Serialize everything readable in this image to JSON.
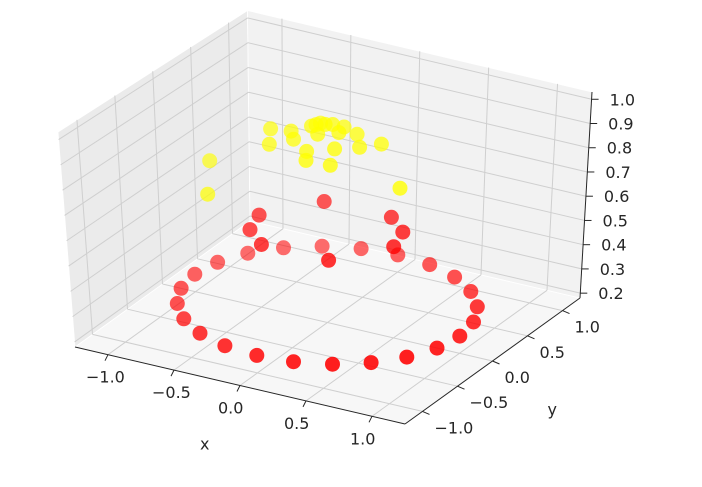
{
  "chart_data": {
    "type": "scatter",
    "projection": "3d",
    "title": "",
    "xlabel": "x",
    "ylabel": "y",
    "zlabel": "",
    "xlim": [
      -1.25,
      1.25
    ],
    "ylim": [
      -1.25,
      1.25
    ],
    "zlim": [
      0.18,
      1.03
    ],
    "xticks": [
      -1.0,
      -0.5,
      0.0,
      0.5,
      1.0
    ],
    "yticks": [
      -1.0,
      -0.5,
      0.0,
      0.5,
      1.0
    ],
    "zticks": [
      0.2,
      0.3,
      0.4,
      0.5,
      0.6,
      0.7,
      0.8,
      0.9,
      1.0
    ],
    "xtick_labels": [
      "−1.0",
      "−0.5",
      "0.0",
      "0.5",
      "1.0"
    ],
    "ytick_labels": [
      "−1.0",
      "−0.5",
      "0.0",
      "0.5",
      "1.0"
    ],
    "ztick_labels": [
      "0.2",
      "0.3",
      "0.4",
      "0.5",
      "0.6",
      "0.7",
      "0.8",
      "0.9",
      "1.0"
    ],
    "grid": true,
    "series": [
      {
        "color": "#ff0000",
        "points": [
          {
            "x": 1.0,
            "y": 0.0,
            "z": 0.25
          },
          {
            "x": 0.966,
            "y": 0.259,
            "z": 0.25
          },
          {
            "x": 0.866,
            "y": 0.5,
            "z": 0.25
          },
          {
            "x": 0.707,
            "y": 0.707,
            "z": 0.25
          },
          {
            "x": 0.5,
            "y": 0.866,
            "z": 0.25
          },
          {
            "x": 0.259,
            "y": 0.966,
            "z": 0.25
          },
          {
            "x": 0.0,
            "y": 1.0,
            "z": 0.25
          },
          {
            "x": -0.259,
            "y": 0.966,
            "z": 0.25
          },
          {
            "x": -0.5,
            "y": 0.866,
            "z": 0.25
          },
          {
            "x": -0.707,
            "y": 0.707,
            "z": 0.25
          },
          {
            "x": -0.866,
            "y": 0.5,
            "z": 0.25
          },
          {
            "x": -0.966,
            "y": 0.259,
            "z": 0.25
          },
          {
            "x": -1.0,
            "y": 0.0,
            "z": 0.25
          },
          {
            "x": -0.966,
            "y": -0.259,
            "z": 0.25
          },
          {
            "x": -0.866,
            "y": -0.5,
            "z": 0.25
          },
          {
            "x": -0.707,
            "y": -0.707,
            "z": 0.25
          },
          {
            "x": -0.5,
            "y": -0.866,
            "z": 0.25
          },
          {
            "x": -0.259,
            "y": -0.966,
            "z": 0.25
          },
          {
            "x": 0.0,
            "y": -1.0,
            "z": 0.25
          },
          {
            "x": 0.259,
            "y": -0.966,
            "z": 0.25
          },
          {
            "x": 0.5,
            "y": -0.866,
            "z": 0.25
          },
          {
            "x": 0.707,
            "y": -0.707,
            "z": 0.25
          },
          {
            "x": 0.866,
            "y": -0.5,
            "z": 0.25
          },
          {
            "x": 0.966,
            "y": -0.259,
            "z": 0.25
          },
          {
            "x": 0.5,
            "y": 0.0,
            "z": 0.55
          },
          {
            "x": 0.25,
            "y": 0.433,
            "z": 0.55
          },
          {
            "x": -0.25,
            "y": 0.433,
            "z": 0.55
          },
          {
            "x": -0.5,
            "y": 0.0,
            "z": 0.55
          },
          {
            "x": -0.25,
            "y": -0.433,
            "z": 0.55
          },
          {
            "x": 0.25,
            "y": -0.433,
            "z": 0.55
          },
          {
            "x": 0.433,
            "y": 0.25,
            "z": 0.55
          },
          {
            "x": -0.433,
            "y": -0.25,
            "z": 0.55
          }
        ]
      },
      {
        "color": "#ffff00",
        "points": [
          {
            "x": 0.0,
            "y": 0.0,
            "z": 0.98
          },
          {
            "x": 0.1,
            "y": 0.0,
            "z": 0.96
          },
          {
            "x": -0.1,
            "y": 0.0,
            "z": 0.96
          },
          {
            "x": 0.0,
            "y": 0.1,
            "z": 0.96
          },
          {
            "x": 0.0,
            "y": -0.1,
            "z": 0.96
          },
          {
            "x": 0.15,
            "y": 0.15,
            "z": 0.93
          },
          {
            "x": -0.15,
            "y": 0.15,
            "z": 0.93
          },
          {
            "x": 0.15,
            "y": -0.15,
            "z": 0.93
          },
          {
            "x": -0.15,
            "y": -0.15,
            "z": 0.93
          },
          {
            "x": 0.25,
            "y": 0.0,
            "z": 0.92
          },
          {
            "x": -0.25,
            "y": 0.0,
            "z": 0.92
          },
          {
            "x": 0.0,
            "y": 0.25,
            "z": 0.92
          },
          {
            "x": 0.0,
            "y": -0.25,
            "z": 0.92
          },
          {
            "x": 0.3,
            "y": 0.2,
            "z": 0.9
          },
          {
            "x": -0.3,
            "y": -0.2,
            "z": 0.9
          },
          {
            "x": 0.2,
            "y": -0.3,
            "z": 0.9
          },
          {
            "x": -0.2,
            "y": 0.3,
            "z": 0.9
          },
          {
            "x": -0.4,
            "y": 0.0,
            "z": 0.91
          },
          {
            "x": 0.05,
            "y": -0.35,
            "z": 0.91
          },
          {
            "x": 0.6,
            "y": -0.1,
            "z": 0.82
          },
          {
            "x": -0.8,
            "y": -0.1,
            "z": 0.75
          },
          {
            "x": -0.6,
            "y": -0.5,
            "z": 0.72
          }
        ]
      }
    ]
  }
}
